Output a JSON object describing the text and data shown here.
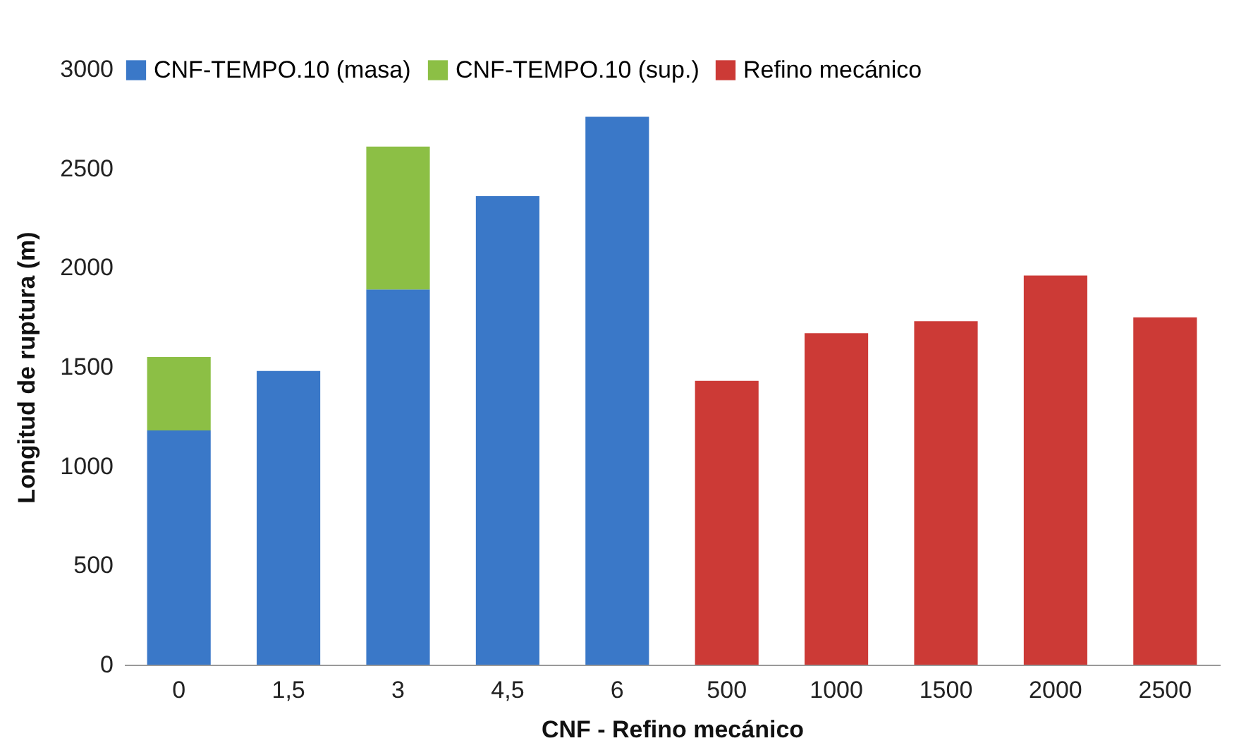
{
  "chart_data": {
    "type": "bar",
    "xlabel": "CNF - Refino mecánico",
    "ylabel": "Longitud de ruptura (m)",
    "categories": [
      "0",
      "1,5",
      "3",
      "4,5",
      "6",
      "500",
      "1000",
      "1500",
      "2000",
      "2500"
    ],
    "stacked": true,
    "ylim": [
      0,
      3000
    ],
    "yticks": [
      0,
      500,
      1000,
      1500,
      2000,
      2500,
      3000
    ],
    "grid": false,
    "legend": "top left",
    "series": [
      {
        "name": "CNF-TEMPO.10 (masa)",
        "color": "#3a78c8",
        "values": [
          1180,
          1480,
          1890,
          2360,
          2760,
          null,
          null,
          null,
          null,
          null
        ]
      },
      {
        "name": "CNF-TEMPO.10 (sup.)",
        "color": "#8cbf45",
        "values": [
          370,
          null,
          720,
          null,
          null,
          null,
          null,
          null,
          null,
          null
        ]
      },
      {
        "name": "Refino mecánico",
        "color": "#cc3a36",
        "values": [
          null,
          null,
          null,
          null,
          null,
          1430,
          1670,
          1730,
          1960,
          1750
        ]
      }
    ]
  }
}
